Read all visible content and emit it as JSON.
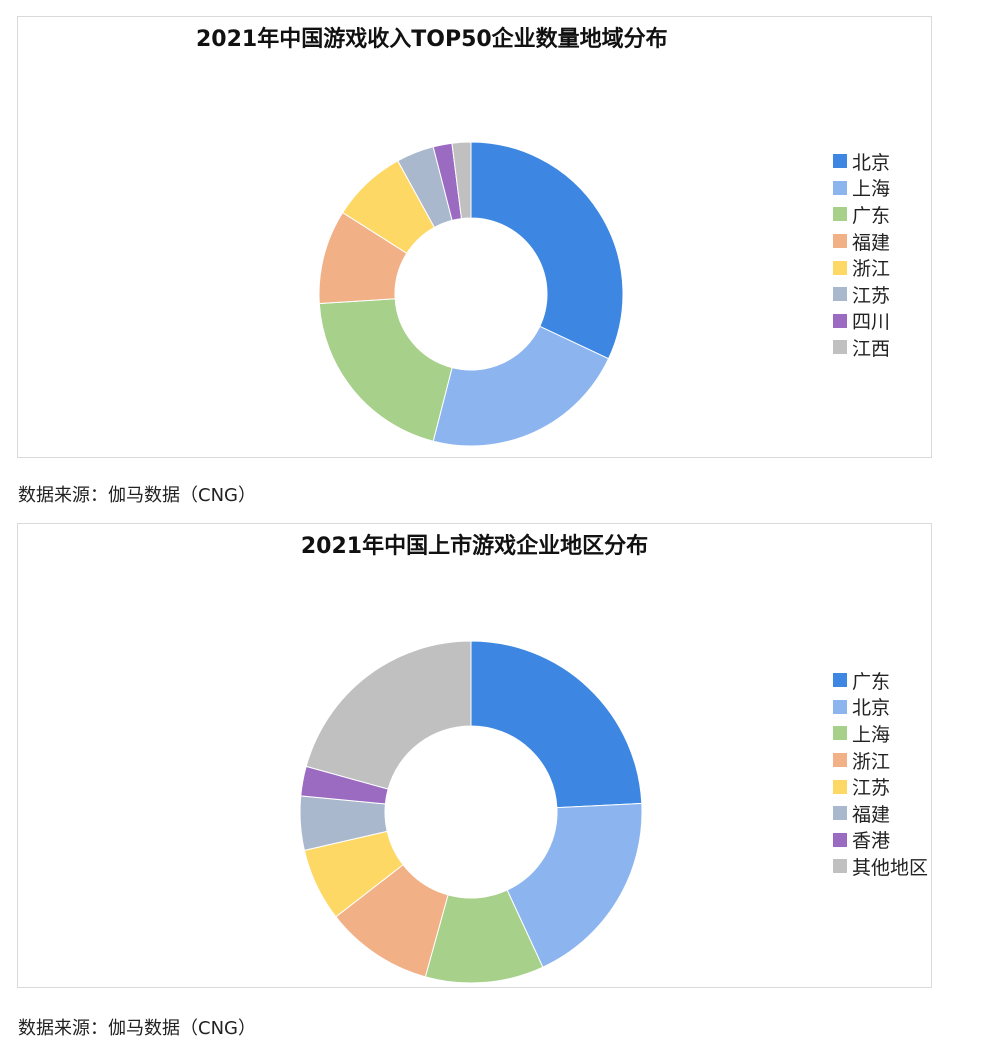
{
  "charts_meta": {
    "source1": "数据来源：伽马数据（CNG）",
    "source2": "数据来源：伽马数据（CNG）"
  },
  "chart_data": [
    {
      "type": "pie",
      "donut": true,
      "title": "2021年中国游戏收入TOP50企业数量地域分布",
      "categories": [
        "北京",
        "上海",
        "广东",
        "福建",
        "浙江",
        "江苏",
        "四川",
        "江西"
      ],
      "values": [
        16,
        11,
        10,
        5,
        4,
        2,
        1,
        1
      ],
      "colors": [
        "#3d87e2",
        "#8cb5ef",
        "#a7d08b",
        "#f1b085",
        "#fdd865",
        "#a9b8cc",
        "#9b6ac1",
        "#c0c0c0"
      ],
      "legend": "right"
    },
    {
      "type": "pie",
      "donut": true,
      "title": "2021年中国上市游戏企业地区分布",
      "categories": [
        "广东",
        "北京",
        "上海",
        "浙江",
        "江苏",
        "福建",
        "香港",
        "其他地区"
      ],
      "values": [
        24.2,
        18.9,
        11.2,
        10.2,
        6.9,
        5.1,
        2.8,
        20.7
      ],
      "colors": [
        "#3d87e2",
        "#8cb5ef",
        "#a7d08b",
        "#f1b085",
        "#fdd865",
        "#a9b8cc",
        "#9b6ac1",
        "#c0c0c0"
      ],
      "legend": "right"
    }
  ]
}
